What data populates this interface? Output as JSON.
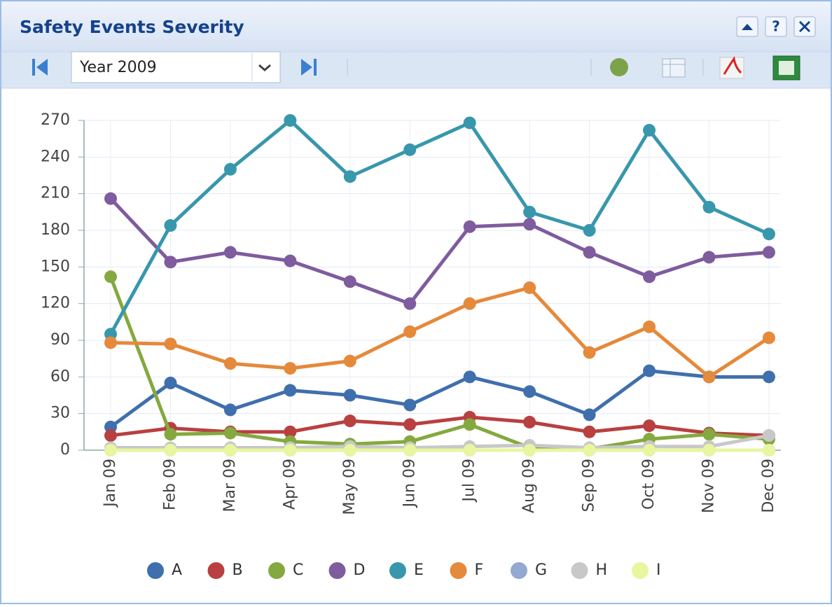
{
  "header": {
    "title": "Safety Events Severity",
    "period": "Year 2009",
    "help": "?"
  },
  "chart_data": {
    "type": "line",
    "categories": [
      "Jan 09",
      "Feb 09",
      "Mar 09",
      "Apr 09",
      "May 09",
      "Jun 09",
      "Jul 09",
      "Aug 09",
      "Sep 09",
      "Oct 09",
      "Nov 09",
      "Dec 09"
    ],
    "series": [
      {
        "name": "A",
        "color": "#3f6fad",
        "values": [
          19,
          55,
          33,
          49,
          45,
          37,
          60,
          48,
          29,
          65,
          60,
          60
        ]
      },
      {
        "name": "B",
        "color": "#b94040",
        "values": [
          12,
          18,
          15,
          15,
          24,
          21,
          27,
          23,
          15,
          20,
          14,
          12
        ]
      },
      {
        "name": "C",
        "color": "#84a93f",
        "values": [
          142,
          13,
          14,
          7,
          5,
          7,
          21,
          2,
          1,
          9,
          13,
          9
        ]
      },
      {
        "name": "D",
        "color": "#7e5c9e",
        "values": [
          206,
          154,
          162,
          155,
          138,
          120,
          183,
          185,
          162,
          142,
          158,
          162
        ]
      },
      {
        "name": "E",
        "color": "#3897ac",
        "values": [
          95,
          184,
          230,
          270,
          224,
          246,
          268,
          195,
          180,
          262,
          199,
          177
        ]
      },
      {
        "name": "F",
        "color": "#e5893a",
        "values": [
          88,
          87,
          71,
          67,
          73,
          97,
          120,
          133,
          80,
          101,
          60,
          92
        ]
      },
      {
        "name": "G",
        "color": "#93a9d1",
        "values": [
          0,
          0,
          0,
          0,
          0,
          0,
          0,
          0,
          0,
          0,
          0,
          0
        ]
      },
      {
        "name": "H",
        "color": "#c8c8c8",
        "values": [
          2,
          2,
          2,
          2,
          3,
          2,
          3,
          4,
          2,
          3,
          3,
          12
        ]
      },
      {
        "name": "I",
        "color": "#eaf5a0",
        "values": [
          0,
          0,
          0,
          0,
          0,
          0,
          0,
          0,
          0,
          0,
          0,
          0
        ]
      }
    ],
    "ylim": [
      0,
      270
    ],
    "yticks": [
      0,
      30,
      60,
      90,
      120,
      150,
      180,
      210,
      240,
      270
    ],
    "grid": true
  }
}
